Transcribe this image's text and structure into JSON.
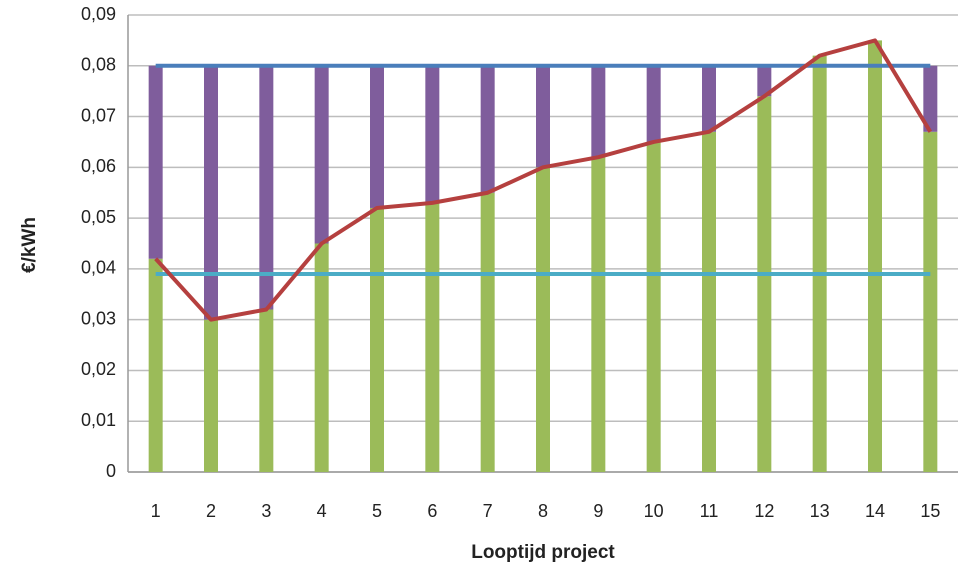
{
  "chart_data": {
    "type": "bar",
    "stacked": true,
    "x_label": "Looptijd project",
    "y_label": "€/kWh",
    "categories": [
      "1",
      "2",
      "3",
      "4",
      "5",
      "6",
      "7",
      "8",
      "9",
      "10",
      "11",
      "12",
      "13",
      "14",
      "15"
    ],
    "series": [
      {
        "kind": "bar",
        "color": "#9bbb59",
        "values": [
          0.042,
          0.03,
          0.032,
          0.045,
          0.052,
          0.053,
          0.055,
          0.06,
          0.062,
          0.065,
          0.067,
          0.074,
          0.082,
          0.085,
          0.067
        ]
      },
      {
        "kind": "bar",
        "color": "#7f5d9c",
        "values": [
          0.038,
          0.05,
          0.048,
          0.035,
          0.028,
          0.027,
          0.025,
          0.02,
          0.018,
          0.015,
          0.013,
          0.006,
          0,
          0,
          0.013
        ]
      },
      {
        "kind": "line",
        "color": "#4a7ebb",
        "values": [
          0.08,
          0.08,
          0.08,
          0.08,
          0.08,
          0.08,
          0.08,
          0.08,
          0.08,
          0.08,
          0.08,
          0.08,
          0.08,
          0.08,
          0.08
        ]
      },
      {
        "kind": "line",
        "color": "#4bacc6",
        "values": [
          0.039,
          0.039,
          0.039,
          0.039,
          0.039,
          0.039,
          0.039,
          0.039,
          0.039,
          0.039,
          0.039,
          0.039,
          0.039,
          0.039,
          0.039
        ]
      },
      {
        "kind": "line",
        "color": "#b5403f",
        "values": [
          0.042,
          0.03,
          0.032,
          0.045,
          0.052,
          0.053,
          0.055,
          0.06,
          0.062,
          0.065,
          0.067,
          0.074,
          0.082,
          0.085,
          0.067
        ]
      }
    ],
    "ylim": [
      0,
      0.09
    ],
    "yticks": [
      0,
      {
        "value": 0.01,
        "label": "0,01"
      },
      {
        "value": 0.02,
        "label": "0,02"
      },
      {
        "value": 0.03,
        "label": "0,03"
      },
      {
        "value": 0.04,
        "label": "0,04"
      },
      {
        "value": 0.05,
        "label": "0,05"
      },
      {
        "value": 0.06,
        "label": "0,06"
      },
      {
        "value": 0.07,
        "label": "0,07"
      },
      {
        "value": 0.08,
        "label": "0,08"
      },
      {
        "value": 0.09,
        "label": "0,09"
      }
    ],
    "grid": true
  }
}
